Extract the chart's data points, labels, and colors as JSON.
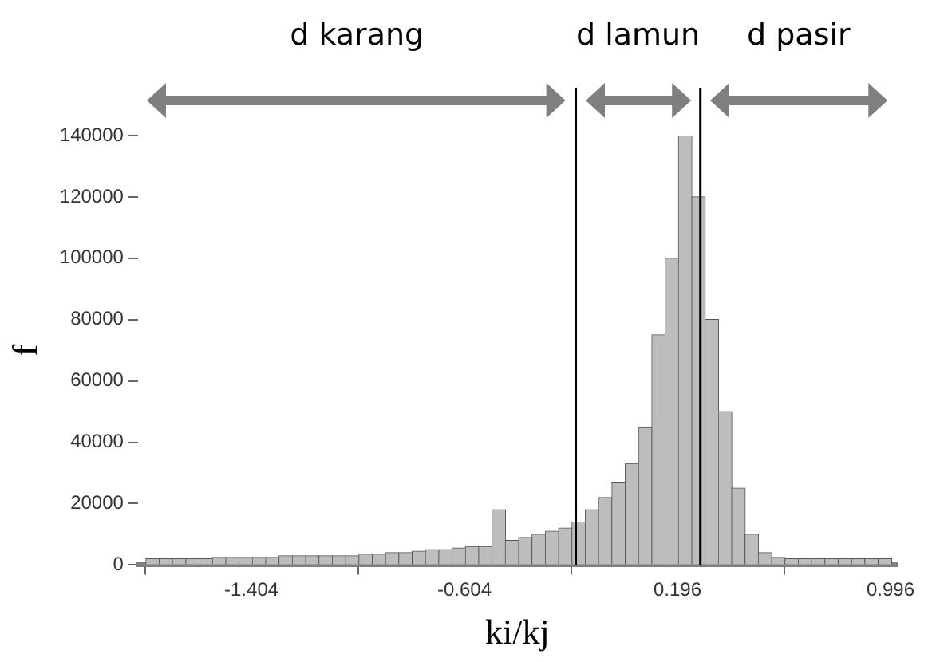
{
  "chart_data": {
    "type": "histogram",
    "xlabel": "ki/kj",
    "ylabel": "f",
    "bins": [
      -1.8,
      -1.75,
      -1.7,
      -1.65,
      -1.6,
      -1.55,
      -1.5,
      -1.45,
      -1.4,
      -1.35,
      -1.3,
      -1.25,
      -1.2,
      -1.15,
      -1.1,
      -1.05,
      -1.0,
      -0.95,
      -0.9,
      -0.85,
      -0.8,
      -0.75,
      -0.7,
      -0.65,
      -0.6,
      -0.55,
      -0.5,
      -0.45,
      -0.4,
      -0.35,
      -0.3,
      -0.25,
      -0.2,
      -0.15,
      -0.1,
      -0.05,
      0,
      0.05,
      0.1,
      0.15,
      0.2,
      0.25,
      0.3,
      0.35,
      0.4,
      0.45,
      0.5,
      0.55,
      0.6,
      0.65,
      0.7,
      0.75,
      0.8,
      0.85,
      0.9,
      0.95,
      1.0
    ],
    "values": [
      2000,
      2000,
      2000,
      2000,
      2000,
      2500,
      2500,
      2500,
      2500,
      2500,
      3000,
      3000,
      3000,
      3000,
      3000,
      3000,
      3500,
      3500,
      4000,
      4000,
      4500,
      5000,
      5000,
      5500,
      6000,
      6000,
      18000,
      8000,
      9000,
      10000,
      11000,
      12000,
      14000,
      18000,
      22000,
      27000,
      33000,
      45000,
      75000,
      100000,
      140000,
      120000,
      80000,
      50000,
      25000,
      10000,
      4000,
      2500,
      2000,
      2000,
      2000,
      2000,
      2000,
      2000,
      2000,
      2000
    ],
    "color": "#bdbdbd",
    "xlim": [
      -1.83,
      1.02
    ],
    "xticks": [
      -1.404,
      -0.604,
      0.196,
      0.996
    ],
    "ylim": [
      0,
      140000
    ],
    "yticks": [
      0,
      20000,
      40000,
      60000,
      80000,
      100000,
      120000,
      140000
    ],
    "grid": false,
    "ref_lines": [
      {
        "axis": "x",
        "value": -0.186,
        "color": "#000000"
      },
      {
        "axis": "x",
        "value": 0.282,
        "color": "#000000"
      }
    ],
    "annotations": [
      "d karang",
      "d lamun",
      "d pasir"
    ]
  }
}
